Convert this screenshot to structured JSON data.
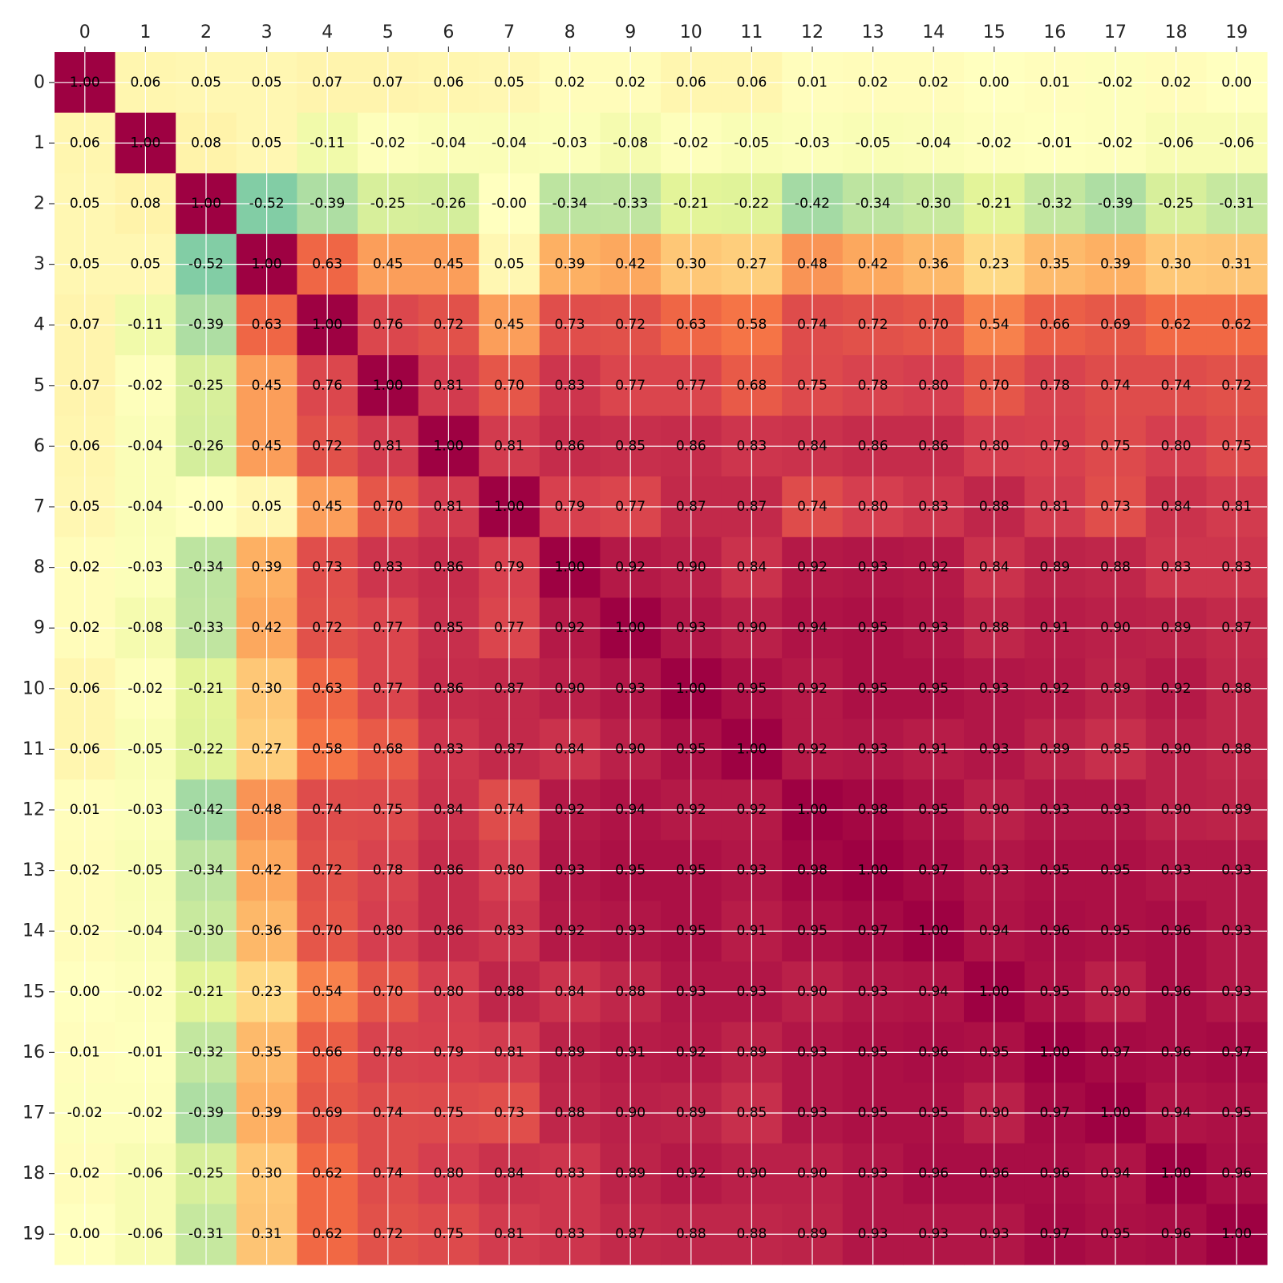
{
  "chart_data": {
    "type": "heatmap",
    "title": "",
    "xlabel": "",
    "ylabel": "",
    "x_ticks": [
      "0",
      "1",
      "2",
      "3",
      "4",
      "5",
      "6",
      "7",
      "8",
      "9",
      "10",
      "11",
      "12",
      "13",
      "14",
      "15",
      "16",
      "17",
      "18",
      "19"
    ],
    "y_ticks": [
      "0",
      "1",
      "2",
      "3",
      "4",
      "5",
      "6",
      "7",
      "8",
      "9",
      "10",
      "11",
      "12",
      "13",
      "14",
      "15",
      "16",
      "17",
      "18",
      "19"
    ],
    "x_axis_position": "top",
    "grid": true,
    "colormap": "Spectral_r",
    "value_range": [
      -1,
      1
    ],
    "values": [
      [
        1.0,
        0.06,
        0.05,
        0.05,
        0.07,
        0.07,
        0.06,
        0.05,
        0.02,
        0.02,
        0.06,
        0.06,
        0.01,
        0.02,
        0.02,
        0.0,
        0.01,
        -0.02,
        0.02,
        0.0
      ],
      [
        0.06,
        1.0,
        0.08,
        0.05,
        -0.11,
        -0.02,
        -0.04,
        -0.04,
        -0.03,
        -0.08,
        -0.02,
        -0.05,
        -0.03,
        -0.05,
        -0.04,
        -0.02,
        -0.01,
        -0.02,
        -0.06,
        -0.06
      ],
      [
        0.05,
        0.08,
        1.0,
        -0.52,
        -0.39,
        -0.25,
        -0.26,
        -0.0,
        -0.34,
        -0.33,
        -0.21,
        -0.22,
        -0.42,
        -0.34,
        -0.3,
        -0.21,
        -0.32,
        -0.39,
        -0.25,
        -0.31
      ],
      [
        0.05,
        0.05,
        -0.52,
        1.0,
        0.63,
        0.45,
        0.45,
        0.05,
        0.39,
        0.42,
        0.3,
        0.27,
        0.48,
        0.42,
        0.36,
        0.23,
        0.35,
        0.39,
        0.3,
        0.31
      ],
      [
        0.07,
        -0.11,
        -0.39,
        0.63,
        1.0,
        0.76,
        0.72,
        0.45,
        0.73,
        0.72,
        0.63,
        0.58,
        0.74,
        0.72,
        0.7,
        0.54,
        0.66,
        0.69,
        0.62,
        0.62
      ],
      [
        0.07,
        -0.02,
        -0.25,
        0.45,
        0.76,
        1.0,
        0.81,
        0.7,
        0.83,
        0.77,
        0.77,
        0.68,
        0.75,
        0.78,
        0.8,
        0.7,
        0.78,
        0.74,
        0.74,
        0.72
      ],
      [
        0.06,
        -0.04,
        -0.26,
        0.45,
        0.72,
        0.81,
        1.0,
        0.81,
        0.86,
        0.85,
        0.86,
        0.83,
        0.84,
        0.86,
        0.86,
        0.8,
        0.79,
        0.75,
        0.8,
        0.75
      ],
      [
        0.05,
        -0.04,
        -0.0,
        0.05,
        0.45,
        0.7,
        0.81,
        1.0,
        0.79,
        0.77,
        0.87,
        0.87,
        0.74,
        0.8,
        0.83,
        0.88,
        0.81,
        0.73,
        0.84,
        0.81
      ],
      [
        0.02,
        -0.03,
        -0.34,
        0.39,
        0.73,
        0.83,
        0.86,
        0.79,
        1.0,
        0.92,
        0.9,
        0.84,
        0.92,
        0.93,
        0.92,
        0.84,
        0.89,
        0.88,
        0.83,
        0.83
      ],
      [
        0.02,
        -0.08,
        -0.33,
        0.42,
        0.72,
        0.77,
        0.85,
        0.77,
        0.92,
        1.0,
        0.93,
        0.9,
        0.94,
        0.95,
        0.93,
        0.88,
        0.91,
        0.9,
        0.89,
        0.87
      ],
      [
        0.06,
        -0.02,
        -0.21,
        0.3,
        0.63,
        0.77,
        0.86,
        0.87,
        0.9,
        0.93,
        1.0,
        0.95,
        0.92,
        0.95,
        0.95,
        0.93,
        0.92,
        0.89,
        0.92,
        0.88
      ],
      [
        0.06,
        -0.05,
        -0.22,
        0.27,
        0.58,
        0.68,
        0.83,
        0.87,
        0.84,
        0.9,
        0.95,
        1.0,
        0.92,
        0.93,
        0.91,
        0.93,
        0.89,
        0.85,
        0.9,
        0.88
      ],
      [
        0.01,
        -0.03,
        -0.42,
        0.48,
        0.74,
        0.75,
        0.84,
        0.74,
        0.92,
        0.94,
        0.92,
        0.92,
        1.0,
        0.98,
        0.95,
        0.9,
        0.93,
        0.93,
        0.9,
        0.89
      ],
      [
        0.02,
        -0.05,
        -0.34,
        0.42,
        0.72,
        0.78,
        0.86,
        0.8,
        0.93,
        0.95,
        0.95,
        0.93,
        0.98,
        1.0,
        0.97,
        0.93,
        0.95,
        0.95,
        0.93,
        0.93
      ],
      [
        0.02,
        -0.04,
        -0.3,
        0.36,
        0.7,
        0.8,
        0.86,
        0.83,
        0.92,
        0.93,
        0.95,
        0.91,
        0.95,
        0.97,
        1.0,
        0.94,
        0.96,
        0.95,
        0.96,
        0.93
      ],
      [
        0.0,
        -0.02,
        -0.21,
        0.23,
        0.54,
        0.7,
        0.8,
        0.88,
        0.84,
        0.88,
        0.93,
        0.93,
        0.9,
        0.93,
        0.94,
        1.0,
        0.95,
        0.9,
        0.96,
        0.93
      ],
      [
        0.01,
        -0.01,
        -0.32,
        0.35,
        0.66,
        0.78,
        0.79,
        0.81,
        0.89,
        0.91,
        0.92,
        0.89,
        0.93,
        0.95,
        0.96,
        0.95,
        1.0,
        0.97,
        0.96,
        0.97
      ],
      [
        -0.02,
        -0.02,
        -0.39,
        0.39,
        0.69,
        0.74,
        0.75,
        0.73,
        0.88,
        0.9,
        0.89,
        0.85,
        0.93,
        0.95,
        0.95,
        0.9,
        0.97,
        1.0,
        0.94,
        0.95
      ],
      [
        0.02,
        -0.06,
        -0.25,
        0.3,
        0.62,
        0.74,
        0.8,
        0.84,
        0.83,
        0.89,
        0.92,
        0.9,
        0.9,
        0.93,
        0.96,
        0.96,
        0.96,
        0.94,
        1.0,
        0.96
      ],
      [
        0.0,
        -0.06,
        -0.31,
        0.31,
        0.62,
        0.72,
        0.75,
        0.81,
        0.83,
        0.87,
        0.88,
        0.88,
        0.89,
        0.93,
        0.93,
        0.93,
        0.97,
        0.95,
        0.96,
        1.0
      ]
    ],
    "cell_labels": [
      [
        "1.00",
        "0.06",
        "0.05",
        "0.05",
        "0.07",
        "0.07",
        "0.06",
        "0.05",
        "0.02",
        "0.02",
        "0.06",
        "0.06",
        "0.01",
        "0.02",
        "0.02",
        "0.00",
        "0.01",
        "-0.02",
        "0.02",
        "0.00"
      ],
      [
        "0.06",
        "1.00",
        "0.08",
        "0.05",
        "-0.11",
        "-0.02",
        "-0.04",
        "-0.04",
        "-0.03",
        "-0.08",
        "-0.02",
        "-0.05",
        "-0.03",
        "-0.05",
        "-0.04",
        "-0.02",
        "-0.01",
        "-0.02",
        "-0.06",
        "-0.06"
      ],
      [
        "0.05",
        "0.08",
        "1.00",
        "-0.52",
        "-0.39",
        "-0.25",
        "-0.26",
        "-0.00",
        "-0.34",
        "-0.33",
        "-0.21",
        "-0.22",
        "-0.42",
        "-0.34",
        "-0.30",
        "-0.21",
        "-0.32",
        "-0.39",
        "-0.25",
        "-0.31"
      ],
      [
        "0.05",
        "0.05",
        "-0.52",
        "1.00",
        "0.63",
        "0.45",
        "0.45",
        "0.05",
        "0.39",
        "0.42",
        "0.30",
        "0.27",
        "0.48",
        "0.42",
        "0.36",
        "0.23",
        "0.35",
        "0.39",
        "0.30",
        "0.31"
      ],
      [
        "0.07",
        "-0.11",
        "-0.39",
        "0.63",
        "1.00",
        "0.76",
        "0.72",
        "0.45",
        "0.73",
        "0.72",
        "0.63",
        "0.58",
        "0.74",
        "0.72",
        "0.70",
        "0.54",
        "0.66",
        "0.69",
        "0.62",
        "0.62"
      ],
      [
        "0.07",
        "-0.02",
        "-0.25",
        "0.45",
        "0.76",
        "1.00",
        "0.81",
        "0.70",
        "0.83",
        "0.77",
        "0.77",
        "0.68",
        "0.75",
        "0.78",
        "0.80",
        "0.70",
        "0.78",
        "0.74",
        "0.74",
        "0.72"
      ],
      [
        "0.06",
        "-0.04",
        "-0.26",
        "0.45",
        "0.72",
        "0.81",
        "1.00",
        "0.81",
        "0.86",
        "0.85",
        "0.86",
        "0.83",
        "0.84",
        "0.86",
        "0.86",
        "0.80",
        "0.79",
        "0.75",
        "0.80",
        "0.75"
      ],
      [
        "0.05",
        "-0.04",
        "-0.00",
        "0.05",
        "0.45",
        "0.70",
        "0.81",
        "1.00",
        "0.79",
        "0.77",
        "0.87",
        "0.87",
        "0.74",
        "0.80",
        "0.83",
        "0.88",
        "0.81",
        "0.73",
        "0.84",
        "0.81"
      ],
      [
        "0.02",
        "-0.03",
        "-0.34",
        "0.39",
        "0.73",
        "0.83",
        "0.86",
        "0.79",
        "1.00",
        "0.92",
        "0.90",
        "0.84",
        "0.92",
        "0.93",
        "0.92",
        "0.84",
        "0.89",
        "0.88",
        "0.83",
        "0.83"
      ],
      [
        "0.02",
        "-0.08",
        "-0.33",
        "0.42",
        "0.72",
        "0.77",
        "0.85",
        "0.77",
        "0.92",
        "1.00",
        "0.93",
        "0.90",
        "0.94",
        "0.95",
        "0.93",
        "0.88",
        "0.91",
        "0.90",
        "0.89",
        "0.87"
      ],
      [
        "0.06",
        "-0.02",
        "-0.21",
        "0.30",
        "0.63",
        "0.77",
        "0.86",
        "0.87",
        "0.90",
        "0.93",
        "1.00",
        "0.95",
        "0.92",
        "0.95",
        "0.95",
        "0.93",
        "0.92",
        "0.89",
        "0.92",
        "0.88"
      ],
      [
        "0.06",
        "-0.05",
        "-0.22",
        "0.27",
        "0.58",
        "0.68",
        "0.83",
        "0.87",
        "0.84",
        "0.90",
        "0.95",
        "1.00",
        "0.92",
        "0.93",
        "0.91",
        "0.93",
        "0.89",
        "0.85",
        "0.90",
        "0.88"
      ],
      [
        "0.01",
        "-0.03",
        "-0.42",
        "0.48",
        "0.74",
        "0.75",
        "0.84",
        "0.74",
        "0.92",
        "0.94",
        "0.92",
        "0.92",
        "1.00",
        "0.98",
        "0.95",
        "0.90",
        "0.93",
        "0.93",
        "0.90",
        "0.89"
      ],
      [
        "0.02",
        "-0.05",
        "-0.34",
        "0.42",
        "0.72",
        "0.78",
        "0.86",
        "0.80",
        "0.93",
        "0.95",
        "0.95",
        "0.93",
        "0.98",
        "1.00",
        "0.97",
        "0.93",
        "0.95",
        "0.95",
        "0.93",
        "0.93"
      ],
      [
        "0.02",
        "-0.04",
        "-0.30",
        "0.36",
        "0.70",
        "0.80",
        "0.86",
        "0.83",
        "0.92",
        "0.93",
        "0.95",
        "0.91",
        "0.95",
        "0.97",
        "1.00",
        "0.94",
        "0.96",
        "0.95",
        "0.96",
        "0.93"
      ],
      [
        "0.00",
        "-0.02",
        "-0.21",
        "0.23",
        "0.54",
        "0.70",
        "0.80",
        "0.88",
        "0.84",
        "0.88",
        "0.93",
        "0.93",
        "0.90",
        "0.93",
        "0.94",
        "1.00",
        "0.95",
        "0.90",
        "0.96",
        "0.93"
      ],
      [
        "0.01",
        "-0.01",
        "-0.32",
        "0.35",
        "0.66",
        "0.78",
        "0.79",
        "0.81",
        "0.89",
        "0.91",
        "0.92",
        "0.89",
        "0.93",
        "0.95",
        "0.96",
        "0.95",
        "1.00",
        "0.97",
        "0.96",
        "0.97"
      ],
      [
        "-0.02",
        "-0.02",
        "-0.39",
        "0.39",
        "0.69",
        "0.74",
        "0.75",
        "0.73",
        "0.88",
        "0.90",
        "0.89",
        "0.85",
        "0.93",
        "0.95",
        "0.95",
        "0.90",
        "0.97",
        "1.00",
        "0.94",
        "0.95"
      ],
      [
        "0.02",
        "-0.06",
        "-0.25",
        "0.30",
        "0.62",
        "0.74",
        "0.80",
        "0.84",
        "0.83",
        "0.89",
        "0.92",
        "0.90",
        "0.90",
        "0.93",
        "0.96",
        "0.96",
        "0.96",
        "0.94",
        "1.00",
        "0.96"
      ],
      [
        "0.00",
        "-0.06",
        "-0.31",
        "0.31",
        "0.62",
        "0.72",
        "0.75",
        "0.81",
        "0.83",
        "0.87",
        "0.88",
        "0.88",
        "0.89",
        "0.93",
        "0.93",
        "0.93",
        "0.97",
        "0.95",
        "0.96",
        "1.00"
      ]
    ]
  }
}
